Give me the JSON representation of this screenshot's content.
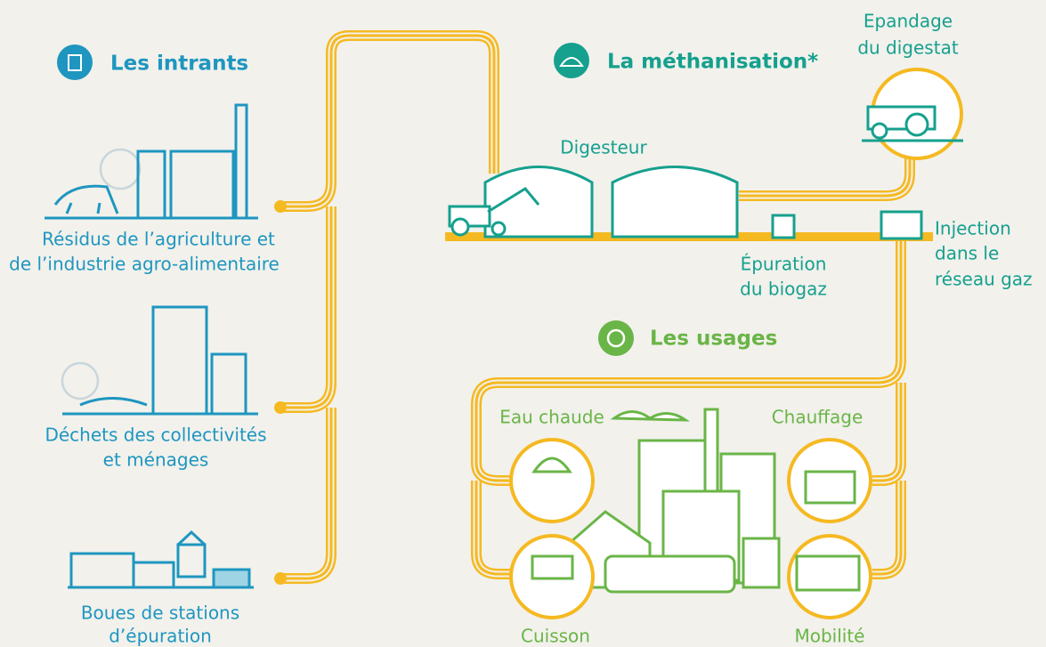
{
  "intrants": {
    "title": "Les intrants",
    "items": [
      {
        "label": [
          "Résidus de l’agriculture et",
          "de l’industrie agro-alimentaire"
        ]
      },
      {
        "label": [
          "Déchets des collectivités",
          "et ménages"
        ]
      },
      {
        "label": [
          "Boues de stations",
          "d’épuration"
        ]
      }
    ]
  },
  "methanisation": {
    "title": "La méthanisation*",
    "digester": "Digesteur",
    "spreading": [
      "Epandage",
      "du digestat"
    ],
    "purification": [
      "Épuration",
      "du biogaz"
    ],
    "injection": [
      "Injection",
      "dans le",
      "réseau gaz"
    ]
  },
  "usages": {
    "title": "Les usages",
    "items": [
      "Eau chaude",
      "Chauffage",
      "Cuisson",
      "Mobilité"
    ]
  }
}
